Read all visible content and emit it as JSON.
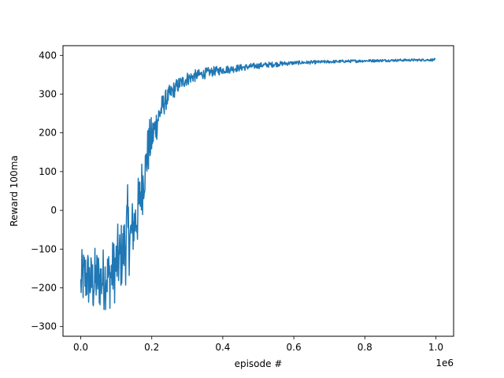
{
  "chart_data": {
    "type": "line",
    "title": "",
    "xlabel": "episode #",
    "ylabel": "Reward 100ma",
    "x_offset_text": "1e6",
    "xlim": [
      -0.05,
      1.05
    ],
    "ylim": [
      -325,
      425
    ],
    "x_ticks": [
      0.0,
      0.2,
      0.4,
      0.6,
      0.8,
      1.0
    ],
    "x_tick_labels": [
      "0.0",
      "0.2",
      "0.4",
      "0.6",
      "0.8",
      "1.0"
    ],
    "y_ticks": [
      -300,
      -200,
      -100,
      0,
      100,
      200,
      300,
      400
    ],
    "y_tick_labels": [
      "−300",
      "−200",
      "−100",
      "0",
      "100",
      "200",
      "300",
      "400"
    ],
    "grid": false,
    "legend": "none",
    "series": [
      {
        "color": "#1f77b4",
        "points": [
          {
            "x": 0.0,
            "low": -270,
            "high": -120
          },
          {
            "x": 0.002,
            "low": -265,
            "high": -105
          },
          {
            "x": 0.005,
            "low": -268,
            "high": -90
          },
          {
            "x": 0.01,
            "low": -270,
            "high": -75
          },
          {
            "x": 0.02,
            "low": -268,
            "high": -80
          },
          {
            "x": 0.03,
            "low": -275,
            "high": -100
          },
          {
            "x": 0.035,
            "low": -292,
            "high": -90
          },
          {
            "x": 0.045,
            "low": -270,
            "high": -80
          },
          {
            "x": 0.06,
            "low": -275,
            "high": -85
          },
          {
            "x": 0.07,
            "low": -260,
            "high": -75
          },
          {
            "x": 0.08,
            "low": -265,
            "high": -80
          },
          {
            "x": 0.09,
            "low": -255,
            "high": -65
          },
          {
            "x": 0.1,
            "low": -240,
            "high": -40
          },
          {
            "x": 0.11,
            "low": -230,
            "high": -20
          },
          {
            "x": 0.12,
            "low": -210,
            "high": -5
          },
          {
            "x": 0.13,
            "low": -195,
            "high": 80
          },
          {
            "x": 0.14,
            "low": -160,
            "high": 25
          },
          {
            "x": 0.15,
            "low": -130,
            "high": 60
          },
          {
            "x": 0.16,
            "low": -110,
            "high": 85
          },
          {
            "x": 0.17,
            "low": -40,
            "high": 145
          },
          {
            "x": 0.18,
            "low": 20,
            "high": 175
          },
          {
            "x": 0.19,
            "low": 80,
            "high": 235
          },
          {
            "x": 0.2,
            "low": 120,
            "high": 250
          },
          {
            "x": 0.21,
            "low": 160,
            "high": 270
          },
          {
            "x": 0.22,
            "low": 200,
            "high": 290
          },
          {
            "x": 0.23,
            "low": 230,
            "high": 305
          },
          {
            "x": 0.24,
            "low": 255,
            "high": 315
          },
          {
            "x": 0.26,
            "low": 285,
            "high": 335
          },
          {
            "x": 0.28,
            "low": 305,
            "high": 350
          },
          {
            "x": 0.3,
            "low": 320,
            "high": 360
          },
          {
            "x": 0.33,
            "low": 333,
            "high": 365
          },
          {
            "x": 0.36,
            "low": 342,
            "high": 370
          },
          {
            "x": 0.4,
            "low": 350,
            "high": 375
          },
          {
            "x": 0.45,
            "low": 358,
            "high": 378
          },
          {
            "x": 0.5,
            "low": 365,
            "high": 382
          },
          {
            "x": 0.55,
            "low": 370,
            "high": 385
          },
          {
            "x": 0.6,
            "low": 375,
            "high": 386
          },
          {
            "x": 0.7,
            "low": 379,
            "high": 388
          },
          {
            "x": 0.8,
            "low": 382,
            "high": 390
          },
          {
            "x": 0.9,
            "low": 384,
            "high": 391
          },
          {
            "x": 1.0,
            "low": 385,
            "high": 392
          }
        ]
      }
    ]
  }
}
